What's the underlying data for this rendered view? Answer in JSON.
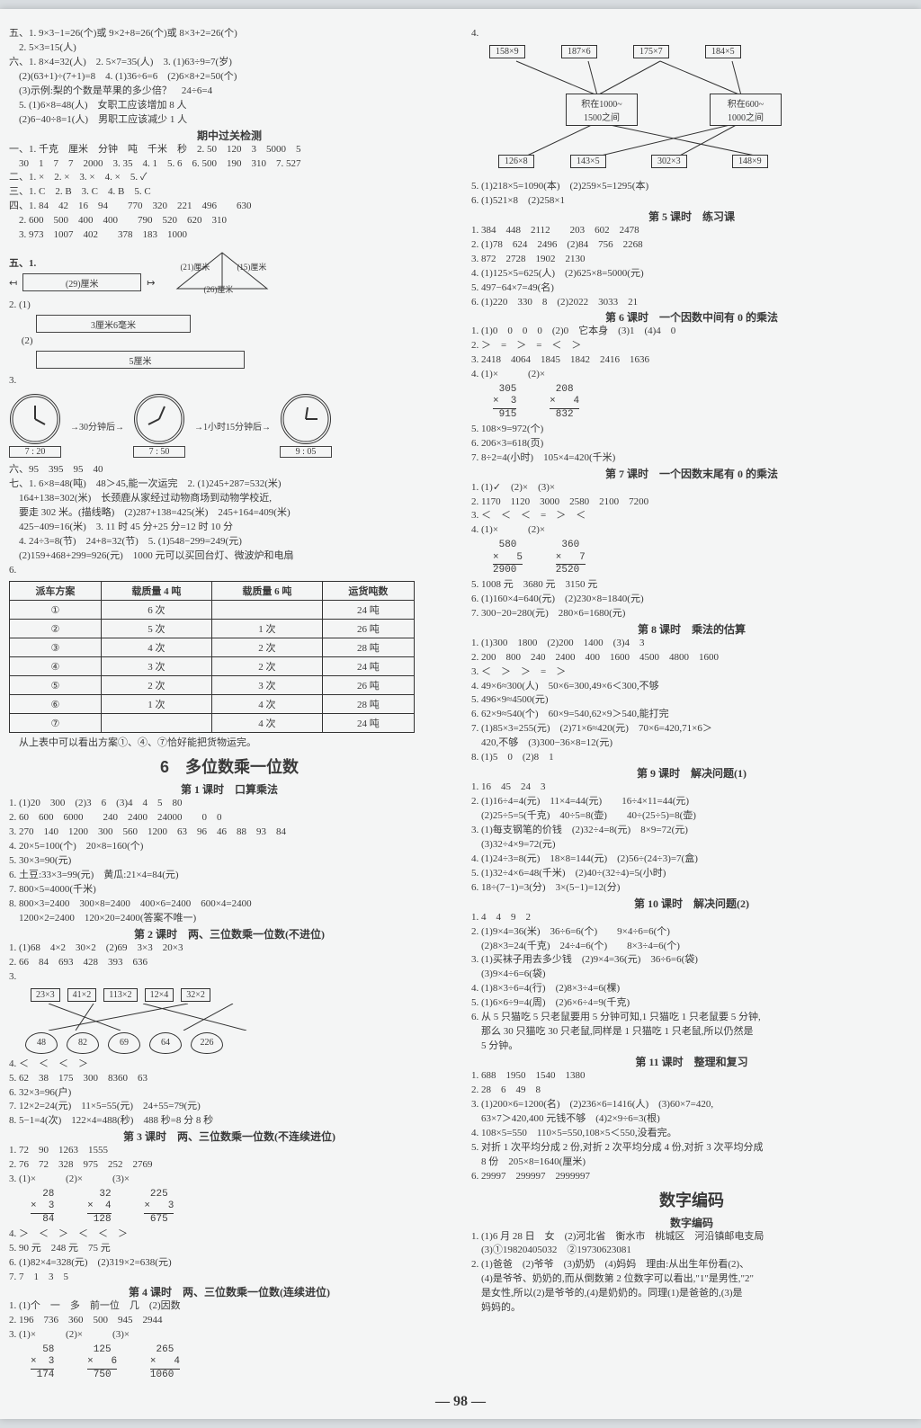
{
  "page_number": "98",
  "left": {
    "l1": "五、1. 9×3−1=26(个)或 9×2+8=26(个)或 8×3+2=26(个)",
    "l2": "　2. 5×3=15(人)",
    "l3": "六、1. 8×4=32(人)　2. 5×7=35(人)　3. (1)63÷9=7(岁)",
    "l4": "　(2)(63+1)÷(7+1)=8　4. (1)36÷6=6　(2)6×8+2=50(个)",
    "l5": "　(3)示例:梨的个数是苹果的多少倍？　24÷6=4",
    "l6": "　5. (1)6×8=48(人)　女职工应该增加 8 人",
    "l7": "　(2)6−40÷8=1(人)　男职工应该减少 1 人",
    "mid_title": "期中过关检测",
    "l8": "一、1. 千克　厘米　分钟　吨　千米　秒　2. 50　120　3　5000　5",
    "l9": "　30　1　7　7　2000　3. 35　4. 1　5. 6　6. 500　190　310　7. 527",
    "l10": "二、1. ×　2. ×　3. ×　4. ×　5. ✓",
    "l11": "三、1. C　2. B　3. C　4. B　5. C",
    "l12": "四、1. 84　42　16　94　　770　320　221　496　　630",
    "l13": "　2. 600　500　400　400　　790　520　620　310",
    "l14": "　3. 973　1007　402　　378　183　1000",
    "tri_a": "(29)厘米",
    "tri_b": "(21)厘米",
    "tri_c": "(15)厘米",
    "tri_d": "(26)厘米",
    "meas_label_1": "3厘米6毫米",
    "meas_label_2": "5厘米",
    "clock_mid1": "30分钟后",
    "clock_mid2": "1小时15分钟后",
    "clock_t1": "7 : 20",
    "clock_t2": "7 : 50",
    "clock_t3": "9 : 05",
    "l15": "六、95　395　95　40",
    "l16": "七、1. 6×8=48(吨)　48＞45,能一次运完　2. (1)245+287=532(米)",
    "l17": "　164+138=302(米)　长颈鹿从家经过动物商场到动物学校近,",
    "l18": "　要走 302 米。(描线略)　(2)287+138=425(米)　245+164=409(米)",
    "l19": "　425−409=16(米)　3. 11 时 45 分+25 分=12 时 10 分",
    "l20": "　4. 24÷3=8(节)　24+8=32(节)　5. (1)548−299=249(元)",
    "l21": "　(2)159+468+299=926(元)　1000 元可以买回台灯、微波炉和电扇",
    "table": {
      "head": [
        "派车方案",
        "载质量 4 吨",
        "载质量 6 吨",
        "运货吨数"
      ],
      "rows": [
        [
          "①",
          "6 次",
          "",
          "24 吨"
        ],
        [
          "②",
          "5 次",
          "1 次",
          "26 吨"
        ],
        [
          "③",
          "4 次",
          "2 次",
          "28 吨"
        ],
        [
          "④",
          "3 次",
          "2 次",
          "24 吨"
        ],
        [
          "⑤",
          "2 次",
          "3 次",
          "26 吨"
        ],
        [
          "⑥",
          "1 次",
          "4 次",
          "28 吨"
        ],
        [
          "⑦",
          "",
          "4 次",
          "24 吨"
        ]
      ]
    },
    "table_foot": "　从上表中可以看出方案①、④、⑦恰好能把货物运完。",
    "unit_title": "6　多位数乘一位数",
    "c1_title": "第 1 课时　口算乘法",
    "c1_1": "1. (1)20　300　(2)3　6　(3)4　4　5　80",
    "c1_2": "2. 60　600　6000　　240　2400　24000　　0　0",
    "c1_3": "3. 270　140　1200　300　560　1200　63　96　46　88　93　84",
    "c1_4": "4. 20×5=100(个)　20×8=160(个)",
    "c1_5": "5. 30×3=90(元)",
    "c1_6": "6. 土豆:33×3=99(元)　黄瓜:21×4=84(元)",
    "c1_7": "7. 800×5=4000(千米)",
    "c1_8": "8. 800×3=2400　300×8=2400　400×6=2400　600×4=2400",
    "c1_9": "　1200×2=2400　120×20=2400(答案不唯一)",
    "c2_title": "第 2 课时　两、三位数乘一位数(不进位)",
    "c2_1": "1. (1)68　4×2　30×2　(2)69　3×3　20×3",
    "c2_2": "2. 66　84　693　428　393　636",
    "cross_top": [
      "23×3",
      "41×2",
      "113×2",
      "12×4",
      "32×2"
    ],
    "cross_bot": [
      "48",
      "82",
      "69",
      "64",
      "226"
    ],
    "c2_3": "4. ＜　＜　＜　＞",
    "c2_4": "5. 62　38　175　300　8360　63",
    "c2_5": "6. 32×3=96(户)",
    "c2_6": "7. 12×2=24(元)　11×5=55(元)　24+55=79(元)",
    "c2_7": "8. 5−1=4(次)　122×4=488(秒)　488 秒=8 分 8 秒",
    "c3_title": "第 3 课时　两、三位数乘一位数(不连续进位)",
    "c3_1": "1. 72　90　1263　1555",
    "c3_2": "2. 76　72　328　975　252　2769",
    "vmul1": {
      "a": "  28",
      "b": "×  3",
      "c": "  84"
    },
    "vmul2": {
      "a": "  32",
      "b": "×  4",
      "c": " 128"
    },
    "vmul3": {
      "a": " 225",
      "b": "×   3",
      "c": " 675"
    },
    "c3_4": "4. ＞　＜　＞　＜　＜　＞",
    "c3_5": "5. 90 元　248 元　75 元",
    "c3_6": "6. (1)82×4=328(元)　(2)319×2=638(元)",
    "c3_7": "7. 7　1　3　5",
    "c4_title": "第 4 课时　两、三位数乘一位数(连续进位)",
    "c4_1": "1. (1)个　一　多　前一位　几　(2)因数",
    "c4_2": "2. 196　736　360　500　945　2944",
    "vmul4": {
      "a": "  58",
      "b": "×  3",
      "c": " 174"
    },
    "vmul5": {
      "a": " 125",
      "b": "×   6",
      "c": " 750"
    },
    "vmul6": {
      "a": " 265",
      "b": "×   4",
      "c": "1060"
    }
  },
  "right": {
    "net_top": [
      "158×9",
      "187×6",
      "175×7",
      "184×5"
    ],
    "net_mid_l": "积在1000~\\n1500之间",
    "net_mid_r": "积在600~\\n1000之间",
    "net_bot": [
      "126×8",
      "143×5",
      "302×3",
      "148×9"
    ],
    "r1": "5. (1)218×5=1090(本)　(2)259×5=1295(本)",
    "r2": "6. (1)521×8　(2)258×1",
    "c5_title": "第 5 课时　练习课",
    "r3": "1. 384　448　2112　　203　602　2478",
    "r4": "2. (1)78　624　2496　(2)84　756　2268",
    "r5": "3. 872　2728　1902　2130",
    "r6": "4. (1)125×5=625(人)　(2)625×8=5000(元)",
    "r7": "5. 497−64×7=49(名)",
    "r8": "6. (1)220　330　8　(2)2022　3033　21",
    "c6_title": "第 6 课时　一个因数中间有 0 的乘法",
    "r9": "1. (1)0　0　0　0　(2)0　它本身　(3)1　(4)4　0",
    "r10": "2. ＞　=　＞　=　＜　＞",
    "r11": "3. 2418　4064　1845　1842　2416　1636",
    "vmulA": {
      "a": " 305",
      "b": "×  3",
      "c": " 915"
    },
    "vmulB": {
      "a": " 208",
      "b": "×   4",
      "c": " 832"
    },
    "r12": "5. 108×9=972(个)",
    "r13": "6. 206×3=618(页)",
    "r14": "7. 8÷2=4(小时)　105×4=420(千米)",
    "c7_title": "第 7 课时　一个因数末尾有 0 的乘法",
    "r15": "1. (1)✓　(2)×　(3)×",
    "r16": "2. 1170　1120　3000　2580　2100　7200",
    "r17": "3. ＜　＜　＜　=　＞　＜",
    "vmulC": {
      "a": " 580",
      "b": "×   5",
      "c": "2900"
    },
    "vmulD": {
      "a": " 360",
      "b": "×   7",
      "c": "2520"
    },
    "r18": "5. 1008 元　3680 元　3150 元",
    "r19": "6. (1)160×4=640(元)　(2)230×8=1840(元)",
    "r20": "7. 300−20=280(元)　280×6=1680(元)",
    "c8_title": "第 8 课时　乘法的估算",
    "r21": "1. (1)300　1800　(2)200　1400　(3)4　3",
    "r22": "2. 200　800　240　2400　400　1600　4500　4800　1600",
    "r23": "3. ＜　＞　＞　=　＞",
    "r24": "4. 49×6≈300(人)　50×6=300,49×6＜300,不够",
    "r25": "5. 496×9≈4500(元)",
    "r26": "6. 62×9≈540(个)　60×9=540,62×9＞540,能打完",
    "r27": "7. (1)85×3=255(元)　(2)71×6≈420(元)　70×6=420,71×6＞",
    "r27b": "　420,不够　(3)300−36×8=12(元)",
    "r28": "8. (1)5　0　(2)8　1",
    "c9_title": "第 9 课时　解决问题(1)",
    "r29": "1. 16　45　24　3",
    "r30": "2. (1)16÷4=4(元)　11×4=44(元)　　16÷4×11=44(元)",
    "r31": "　(2)25÷5=5(千克)　40÷5=8(壶)　　40÷(25÷5)=8(壶)",
    "r32": "3. (1)每支钢笔的价钱　(2)32÷4=8(元)　8×9=72(元)",
    "r33": "　(3)32÷4×9=72(元)",
    "r34": "4. (1)24÷3=8(元)　18×8=144(元)　(2)56÷(24÷3)=7(盒)",
    "r35": "5. (1)32÷4×6=48(千米)　(2)40÷(32÷4)=5(小时)",
    "r36": "6. 18÷(7−1)=3(分)　3×(5−1)=12(分)",
    "c10_title": "第 10 课时　解决问题(2)",
    "r37": "1. 4　4　9　2",
    "r38": "2. (1)9×4=36(米)　36÷6=6(个)　　9×4÷6=6(个)",
    "r39": "　(2)8×3=24(千克)　24÷4=6(个)　　8×3÷4=6(个)",
    "r40": "3. (1)买袜子用去多少钱　(2)9×4=36(元)　36÷6=6(袋)",
    "r41": "　(3)9×4÷6=6(袋)",
    "r42": "4. (1)8×3÷6=4(行)　(2)8×3÷4=6(棵)",
    "r43": "5. (1)6×6÷9=4(周)　(2)6×6÷4=9(千克)",
    "r44": "6. 从 5 只猫吃 5 只老鼠要用 5 分钟可知,1 只猫吃 1 只老鼠要 5 分钟,",
    "r45": "　那么 30 只猫吃 30 只老鼠,同样是 1 只猫吃 1 只老鼠,所以仍然是",
    "r46": "　5 分钟。",
    "c11_title": "第 11 课时　整理和复习",
    "r47": "1. 688　1950　1540　1380",
    "r48": "2. 28　6　49　8",
    "r49": "3. (1)200×6=1200(名)　(2)236×6=1416(人)　(3)60×7=420,",
    "r50": "　63×7＞420,400 元钱不够　(4)2×9÷6=3(根)",
    "r51": "4. 108×5=550　110×5=550,108×5＜550,没看完。",
    "r52": "5. 对折 1 次平均分成 2 份,对折 2 次平均分成 4 份,对折 3 次平均分成",
    "r53": "　8 份　205×8=1640(厘米)",
    "r54": "6. 29997　299997　2999997",
    "code_big": "数字编码",
    "code_sub": "数字编码",
    "r55": "1. (1)6 月 28 日　女　(2)河北省　衡水市　桃城区　河沿镇邮电支局",
    "r56": "　(3)①19820405032　②19730623081",
    "r57": "2. (1)爸爸　(2)爷爷　(3)奶奶　(4)妈妈　理由:从出生年份看(2)、",
    "r58": "　(4)是爷爷、奶奶的,而从倒数第 2 位数字可以看出,\"1\"是男性,\"2\"",
    "r59": "　是女性,所以(2)是爷爷的,(4)是奶奶的。同理(1)是爸爸的,(3)是",
    "r60": "　妈妈的。"
  }
}
